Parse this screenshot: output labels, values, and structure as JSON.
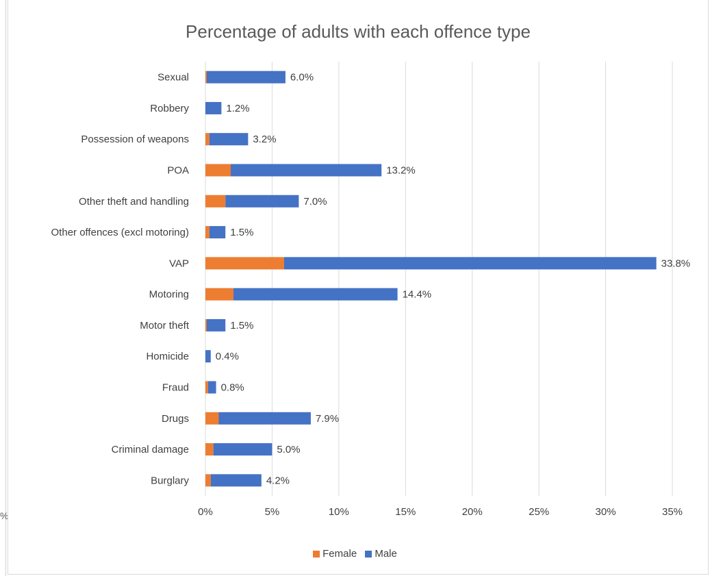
{
  "chart_data": {
    "type": "bar",
    "orientation": "horizontal",
    "stacked": true,
    "title": "Percentage of adults with each offence type",
    "xlabel": "",
    "ylabel": "",
    "categories": [
      "Sexual",
      "Robbery",
      "Possession of weapons",
      "POA",
      "Other theft and handling",
      "Other offences (excl motoring)",
      "VAP",
      "Motoring",
      "Motor theft",
      "Homicide",
      "Fraud",
      "Drugs",
      "Criminal damage",
      "Burglary"
    ],
    "series": [
      {
        "name": "Female",
        "color": "#ED7D31",
        "values": [
          0.1,
          0.0,
          0.3,
          1.9,
          1.5,
          0.3,
          5.9,
          2.1,
          0.1,
          0.0,
          0.2,
          1.0,
          0.6,
          0.4
        ]
      },
      {
        "name": "Male",
        "color": "#4472C4",
        "values": [
          5.9,
          1.2,
          2.9,
          11.3,
          5.5,
          1.2,
          27.9,
          12.3,
          1.4,
          0.4,
          0.6,
          6.9,
          4.4,
          3.8
        ]
      }
    ],
    "totals": [
      "6.0%",
      "1.2%",
      "3.2%",
      "13.2%",
      "7.0%",
      "1.5%",
      "33.8%",
      "14.4%",
      "1.5%",
      "0.4%",
      "0.8%",
      "7.9%",
      "5.0%",
      "4.2%"
    ],
    "xlim": [
      0,
      35
    ],
    "x_ticks": [
      0,
      5,
      10,
      15,
      20,
      25,
      30,
      35
    ],
    "x_tick_labels": [
      "0%",
      "5%",
      "10%",
      "15%",
      "20%",
      "25%",
      "30%",
      "35%"
    ],
    "grid": true,
    "legend_position": "bottom"
  },
  "legend": {
    "female_label": "Female",
    "male_label": "Male"
  },
  "edge_glyph": "%"
}
